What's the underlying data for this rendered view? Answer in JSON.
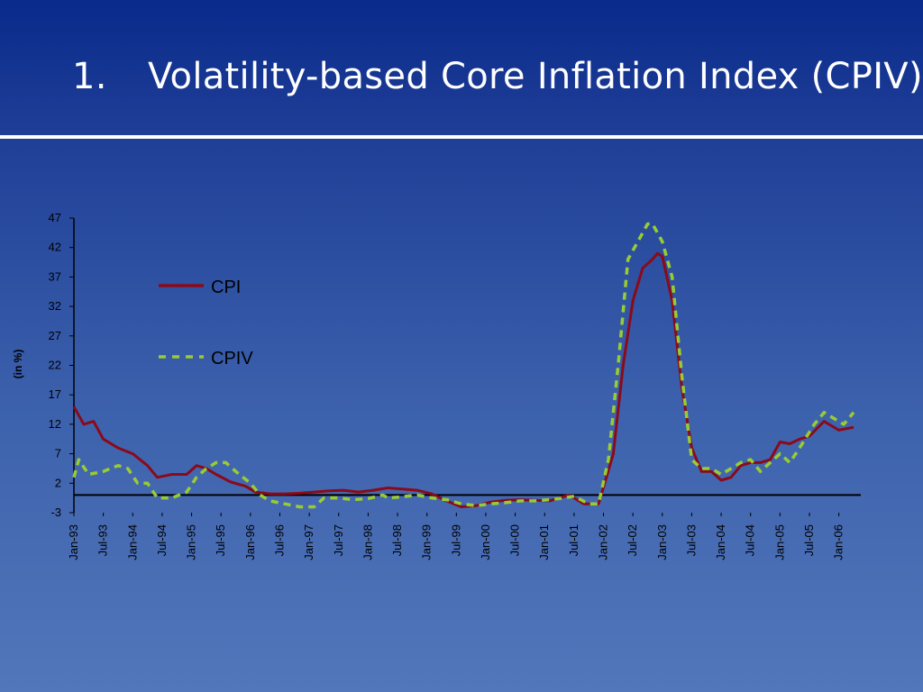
{
  "slide": {
    "number": "1.",
    "title": "Volatility-based Core Inflation Index (CPIV)"
  },
  "chart_data": {
    "type": "line",
    "ylabel": "(in %)",
    "ylim": [
      -3,
      47
    ],
    "yticks": [
      -3,
      2,
      7,
      12,
      17,
      22,
      27,
      32,
      37,
      42,
      47
    ],
    "xtick_labels": [
      "Jan-93",
      "Jul-93",
      "Jan-94",
      "Jul-94",
      "Jan-95",
      "Jul-95",
      "Jan-96",
      "Jul-96",
      "Jan-97",
      "Jul-97",
      "Jan-98",
      "Jul-98",
      "Jan-99",
      "Jul-99",
      "Jan-00",
      "Jul-00",
      "Jan-01",
      "Jul-01",
      "Jan-02",
      "Jul-02",
      "Jan-03",
      "Jul-03",
      "Jan-04",
      "Jul-04",
      "Jan-05",
      "Jul-05",
      "Jan-06"
    ],
    "x_start": "Jan-93",
    "x_end": "Apr-06",
    "reference_line": 0,
    "legend_position": "upper-left",
    "colors": {
      "CPI": "#8b0a1a",
      "CPIV": "#99cc33",
      "axis": "#000000"
    },
    "series": [
      {
        "name": "CPI",
        "style": "solid",
        "points": [
          [
            "Jan-93",
            15
          ],
          [
            "Mar-93",
            12
          ],
          [
            "May-93",
            12.5
          ],
          [
            "Jul-93",
            9.5
          ],
          [
            "Oct-93",
            8
          ],
          [
            "Jan-94",
            7
          ],
          [
            "Apr-94",
            5
          ],
          [
            "Jun-94",
            3
          ],
          [
            "Sep-94",
            3.5
          ],
          [
            "Dec-94",
            3.5
          ],
          [
            "Feb-95",
            5
          ],
          [
            "Apr-95",
            4.5
          ],
          [
            "Jun-95",
            3.5
          ],
          [
            "Sep-95",
            2.2
          ],
          [
            "Dec-95",
            1.5
          ],
          [
            "Feb-96",
            0.5
          ],
          [
            "May-96",
            0.2
          ],
          [
            "Aug-96",
            0.2
          ],
          [
            "Nov-96",
            0.3
          ],
          [
            "Feb-97",
            0.5
          ],
          [
            "May-97",
            0.7
          ],
          [
            "Aug-97",
            0.8
          ],
          [
            "Nov-97",
            0.5
          ],
          [
            "Feb-98",
            0.8
          ],
          [
            "May-98",
            1.2
          ],
          [
            "Aug-98",
            1.0
          ],
          [
            "Nov-98",
            0.8
          ],
          [
            "Feb-99",
            0.2
          ],
          [
            "May-99",
            -1
          ],
          [
            "Aug-99",
            -2
          ],
          [
            "Nov-99",
            -1.8
          ],
          [
            "Feb-00",
            -1.2
          ],
          [
            "May-00",
            -0.9
          ],
          [
            "Aug-00",
            -0.8
          ],
          [
            "Nov-00",
            -0.9
          ],
          [
            "Feb-01",
            -1
          ],
          [
            "Apr-01",
            -0.5
          ],
          [
            "Jun-01",
            0
          ],
          [
            "Sep-01",
            -1.5
          ],
          [
            "Dec-01",
            -1.5
          ],
          [
            "Mar-02",
            7
          ],
          [
            "May-02",
            22
          ],
          [
            "Jul-02",
            33
          ],
          [
            "Sep-02",
            38.5
          ],
          [
            "Nov-02",
            40
          ],
          [
            "Dec-02",
            41
          ],
          [
            "Jan-03",
            40.5
          ],
          [
            "Mar-03",
            33
          ],
          [
            "May-03",
            18
          ],
          [
            "Jul-03",
            8
          ],
          [
            "Sep-03",
            4
          ],
          [
            "Nov-03",
            4
          ],
          [
            "Jan-04",
            2.5
          ],
          [
            "Mar-04",
            3
          ],
          [
            "May-04",
            5
          ],
          [
            "Jul-04",
            5.5
          ],
          [
            "Sep-04",
            5.5
          ],
          [
            "Nov-04",
            6
          ],
          [
            "Jan-05",
            9
          ],
          [
            "Mar-05",
            8.7
          ],
          [
            "May-05",
            9.5
          ],
          [
            "Jul-05",
            10
          ],
          [
            "Oct-05",
            12.5
          ],
          [
            "Jan-06",
            11
          ],
          [
            "Apr-06",
            11.5
          ]
        ]
      },
      {
        "name": "CPIV",
        "style": "dashed",
        "points": [
          [
            "Jan-93",
            3
          ],
          [
            "Feb-93",
            6
          ],
          [
            "Apr-93",
            3.5
          ],
          [
            "Jul-93",
            4
          ],
          [
            "Oct-93",
            5
          ],
          [
            "Dec-93",
            4.5
          ],
          [
            "Feb-94",
            2
          ],
          [
            "Apr-94",
            2
          ],
          [
            "Jun-94",
            -0.5
          ],
          [
            "Sep-94",
            -0.5
          ],
          [
            "Dec-94",
            0.5
          ],
          [
            "Feb-95",
            3
          ],
          [
            "Apr-95",
            4.5
          ],
          [
            "Jun-95",
            5.5
          ],
          [
            "Aug-95",
            5.5
          ],
          [
            "Oct-95",
            4
          ],
          [
            "Jan-96",
            2
          ],
          [
            "Mar-96",
            0
          ],
          [
            "May-96",
            -1
          ],
          [
            "Aug-96",
            -1.5
          ],
          [
            "Nov-96",
            -2
          ],
          [
            "Feb-97",
            -2
          ],
          [
            "Apr-97",
            -0.5
          ],
          [
            "Jul-97",
            -0.5
          ],
          [
            "Oct-97",
            -0.8
          ],
          [
            "Jan-98",
            -0.6
          ],
          [
            "Apr-98",
            0
          ],
          [
            "May-98",
            -0.5
          ],
          [
            "Aug-98",
            -0.3
          ],
          [
            "Nov-98",
            0
          ],
          [
            "Feb-99",
            -0.5
          ],
          [
            "May-99",
            -0.8
          ],
          [
            "Aug-99",
            -1.5
          ],
          [
            "Nov-99",
            -1.8
          ],
          [
            "Feb-00",
            -1.5
          ],
          [
            "May-00",
            -1.3
          ],
          [
            "Aug-00",
            -1
          ],
          [
            "Nov-00",
            -1
          ],
          [
            "Feb-01",
            -0.8
          ],
          [
            "May-01",
            -0.5
          ],
          [
            "Jul-01",
            -0.2
          ],
          [
            "Oct-01",
            -1.5
          ],
          [
            "Dec-01",
            -1.5
          ],
          [
            "Feb-02",
            6
          ],
          [
            "Apr-02",
            22
          ],
          [
            "Jun-02",
            40
          ],
          [
            "Aug-02",
            43
          ],
          [
            "Oct-02",
            46
          ],
          [
            "Nov-02",
            46
          ],
          [
            "Jan-03",
            43
          ],
          [
            "Mar-03",
            37
          ],
          [
            "May-03",
            20
          ],
          [
            "Jul-03",
            6
          ],
          [
            "Sep-03",
            4.5
          ],
          [
            "Nov-03",
            4.5
          ],
          [
            "Jan-04",
            3.5
          ],
          [
            "Mar-04",
            4.5
          ],
          [
            "May-04",
            5.5
          ],
          [
            "Jul-04",
            6
          ],
          [
            "Sep-04",
            4
          ],
          [
            "Nov-04",
            5.5
          ],
          [
            "Jan-05",
            7
          ],
          [
            "Mar-05",
            5.5
          ],
          [
            "May-05",
            8
          ],
          [
            "Aug-05",
            12
          ],
          [
            "Oct-05",
            14
          ],
          [
            "Dec-05",
            13
          ],
          [
            "Feb-06",
            12
          ],
          [
            "Apr-06",
            14
          ]
        ]
      }
    ]
  }
}
